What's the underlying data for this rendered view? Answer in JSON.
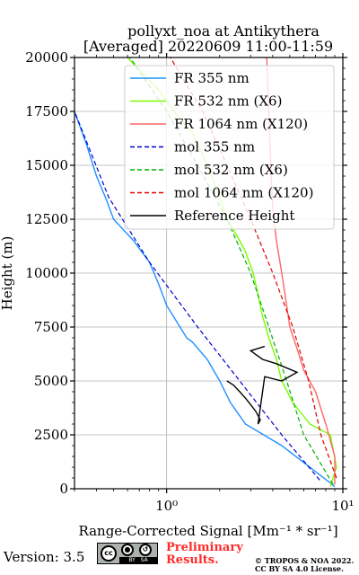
{
  "chart_data": {
    "type": "line",
    "title": [
      "pollyxt_noa at Antikythera",
      "[Averaged] 20220609 11:00-11:59"
    ],
    "xlabel": "Range-Corrected Signal [Mm⁻¹ * sr⁻¹]",
    "ylabel": "Height (m)",
    "xscale": "log",
    "xlim": [
      0.3,
      10
    ],
    "ylim": [
      0,
      20000
    ],
    "x_ticks": [
      1,
      10
    ],
    "x_tick_labels": [
      "10⁰",
      "10¹"
    ],
    "y_ticks": [
      0,
      2500,
      5000,
      7500,
      10000,
      12500,
      15000,
      17500,
      20000
    ],
    "y_tick_labels": [
      "0",
      "2500",
      "5000",
      "7500",
      "10000",
      "12500",
      "15000",
      "17500",
      "20000"
    ],
    "grid": true,
    "legend_position": "top-right",
    "series": [
      {
        "name": "FR 355 nm",
        "color": "#1e90ff",
        "style": "solid",
        "x": [
          9.0,
          7.8,
          4.5,
          2.8,
          2.3,
          2.0,
          1.7,
          1.4,
          1.3,
          1.0,
          0.9,
          0.8,
          0.65,
          0.5,
          0.45,
          0.4,
          0.35,
          0.3
        ],
        "y": [
          100,
          500,
          2000,
          3000,
          4000,
          5000,
          6000,
          6800,
          7000,
          8500,
          9500,
          10500,
          11500,
          12500,
          13500,
          14500,
          16000,
          17500
        ]
      },
      {
        "name": "FR 532 nm (X6)",
        "color": "#7cfc00",
        "style": "solid",
        "x": [
          8.5,
          9.2,
          8.5,
          6.5,
          5.2,
          4.5,
          4.2,
          3.8,
          3.5,
          3.3,
          3.1,
          2.8,
          2.6,
          2.4,
          2.2,
          2.0,
          1.8,
          1.6,
          1.4,
          1.1,
          0.9,
          0.6
        ],
        "y": [
          100,
          1000,
          2500,
          3000,
          4000,
          5000,
          6000,
          7000,
          8000,
          9000,
          10000,
          11000,
          11500,
          12000,
          12500,
          13500,
          14500,
          15500,
          16500,
          17500,
          18500,
          20000
        ]
      },
      {
        "name": "FR 1064 nm (X120)",
        "color": "#ff6666",
        "style": "solid",
        "x": [
          9.0,
          9.0,
          8.0,
          7.0,
          6.0,
          5.5,
          5.0,
          4.8,
          4.6,
          4.4,
          4.2,
          4.0,
          3.9,
          3.8,
          3.7
        ],
        "y": [
          200,
          1500,
          3000,
          4500,
          5500,
          6500,
          7500,
          8500,
          9500,
          10500,
          11500,
          13000,
          15000,
          17500,
          20000
        ]
      },
      {
        "name": "mol 355 nm",
        "color": "#0000cd",
        "style": "dashed",
        "x": [
          7.4,
          4.5,
          2.6,
          1.5,
          0.8,
          0.47,
          0.3
        ],
        "y": [
          400,
          2500,
          5000,
          7500,
          10500,
          13500,
          17500
        ]
      },
      {
        "name": "mol 532 nm (X6)",
        "color": "#00b000",
        "style": "dashed",
        "x": [
          8.8,
          6.0,
          4.8,
          3.8,
          3.0,
          2.2,
          1.5,
          1.0,
          0.62
        ],
        "y": [
          200,
          2500,
          5000,
          7500,
          10000,
          12500,
          15000,
          17500,
          20000
        ]
      },
      {
        "name": "mol 1064 nm (X120)",
        "color": "#dd0000",
        "style": "dashed",
        "x": [
          9.2,
          7.5,
          6.4,
          5.2,
          4.0,
          3.0,
          2.2,
          1.6,
          1.05
        ],
        "y": [
          500,
          2500,
          5000,
          7500,
          10000,
          12500,
          15000,
          17500,
          20000
        ]
      },
      {
        "name": "Reference Height",
        "color": "#000000",
        "style": "solid",
        "x": [
          2.2,
          2.4,
          2.6,
          2.8,
          3.0,
          3.2,
          3.4,
          3.3,
          3.6,
          4.5,
          5.5,
          4.2,
          3.5,
          3.0,
          3.6
        ],
        "y": [
          5000,
          4800,
          4500,
          4200,
          3900,
          3600,
          3200,
          3000,
          5200,
          5000,
          5400,
          5800,
          6000,
          6400,
          6600
        ]
      }
    ]
  },
  "footer": {
    "version": "Version: 3.5",
    "license_badge": [
      "cc",
      "BY",
      "SA"
    ],
    "preliminary": [
      "Preliminary",
      "Results."
    ],
    "copyright": [
      "© TROPOS & NOA 2022.",
      "CC BY SA 4.0 License."
    ]
  }
}
